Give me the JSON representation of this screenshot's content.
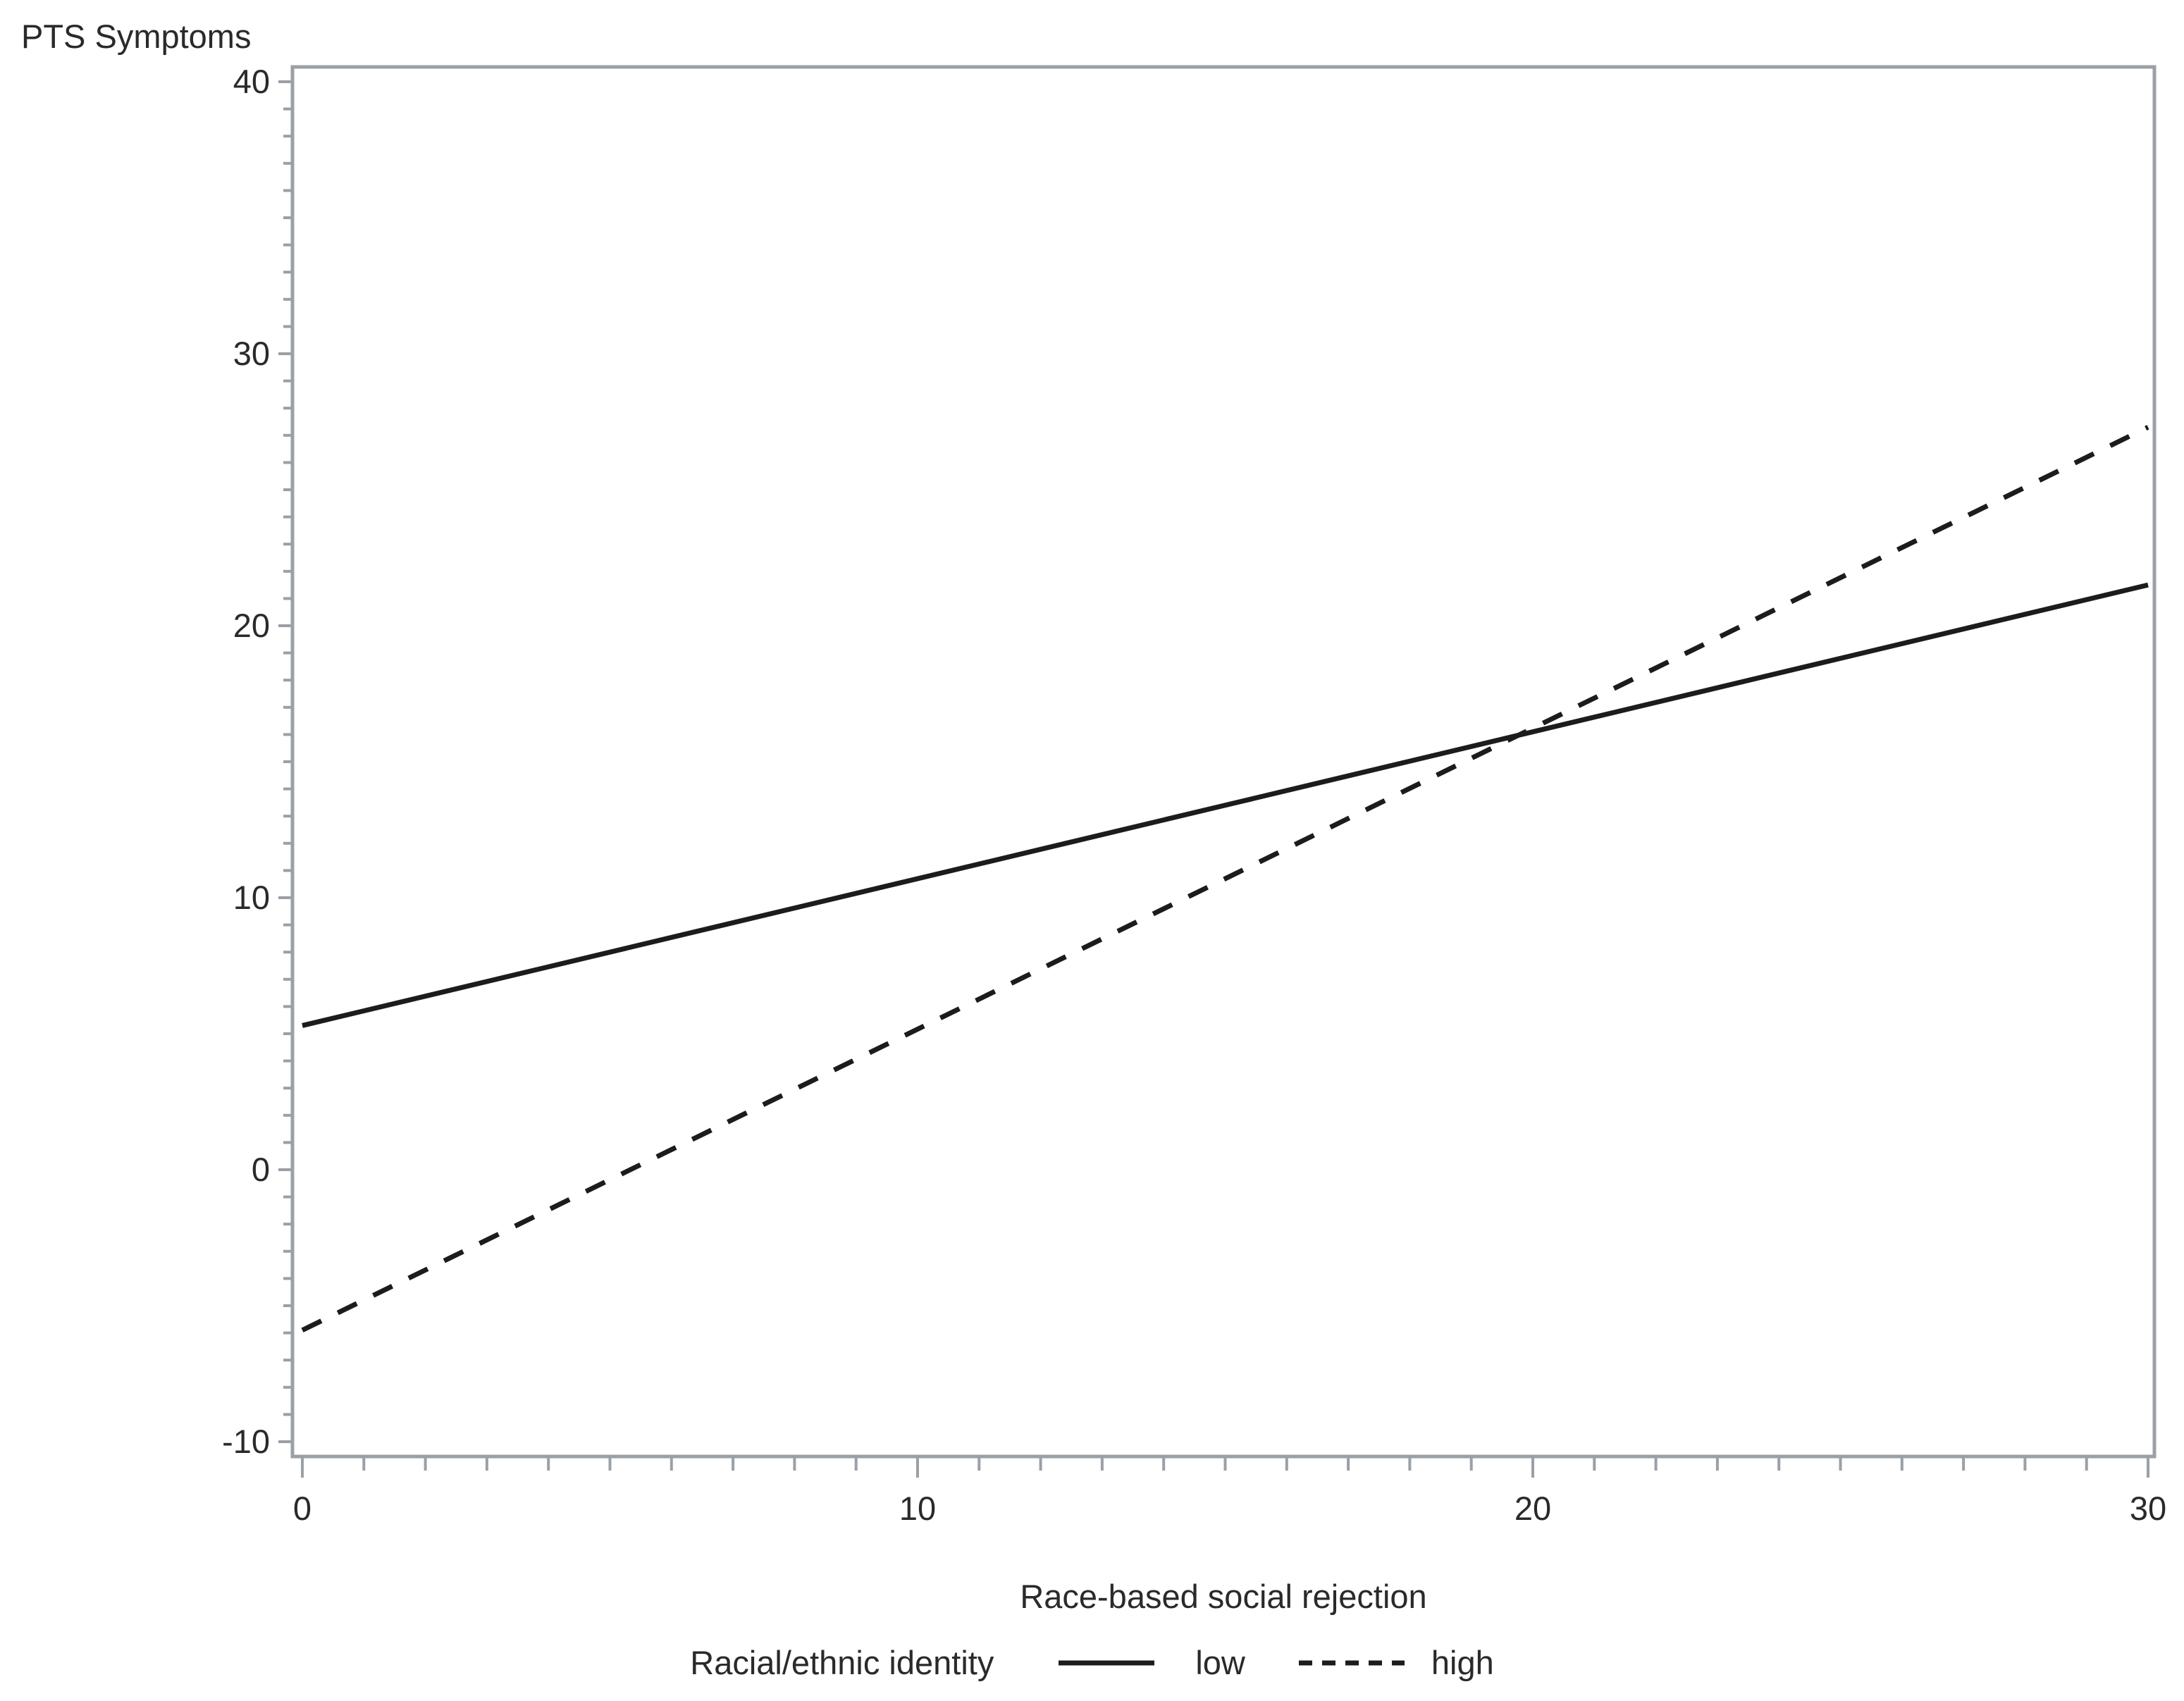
{
  "page": {
    "background": "#ffffff"
  },
  "chart_data": {
    "type": "line",
    "title": "",
    "ylabel": "PTS Symptoms",
    "xlabel": "Race-based social rejection",
    "xlim": [
      0,
      30
    ],
    "ylim": [
      -10,
      40
    ],
    "x_major_ticks": [
      0,
      10,
      20,
      30
    ],
    "y_major_ticks": [
      -10,
      0,
      10,
      20,
      30,
      40
    ],
    "x_tick_labels": [
      "0",
      "10",
      "20",
      "30"
    ],
    "y_tick_labels": [
      "-10",
      "0",
      "10",
      "20",
      "30",
      "40"
    ],
    "minor_tick_interval": 1,
    "grid": false,
    "legend": {
      "title": "Racial/ethnic identity",
      "position": "bottom",
      "entries": [
        {
          "label": "low",
          "style": "solid"
        },
        {
          "label": "high",
          "style": "dashed"
        }
      ]
    },
    "series": [
      {
        "name": "low",
        "style": "solid",
        "x": [
          0,
          30
        ],
        "y": [
          5.3,
          21.5
        ]
      },
      {
        "name": "high",
        "style": "dashed",
        "x": [
          0,
          30
        ],
        "y": [
          -5.9,
          27.3
        ]
      }
    ],
    "intersection_estimate": {
      "x": 19.9,
      "y": 16.1
    },
    "colors": {
      "line": "#1c1c1c",
      "axis": "#9aa0a6",
      "text": "#2a2a2a",
      "background": "#ffffff"
    }
  }
}
